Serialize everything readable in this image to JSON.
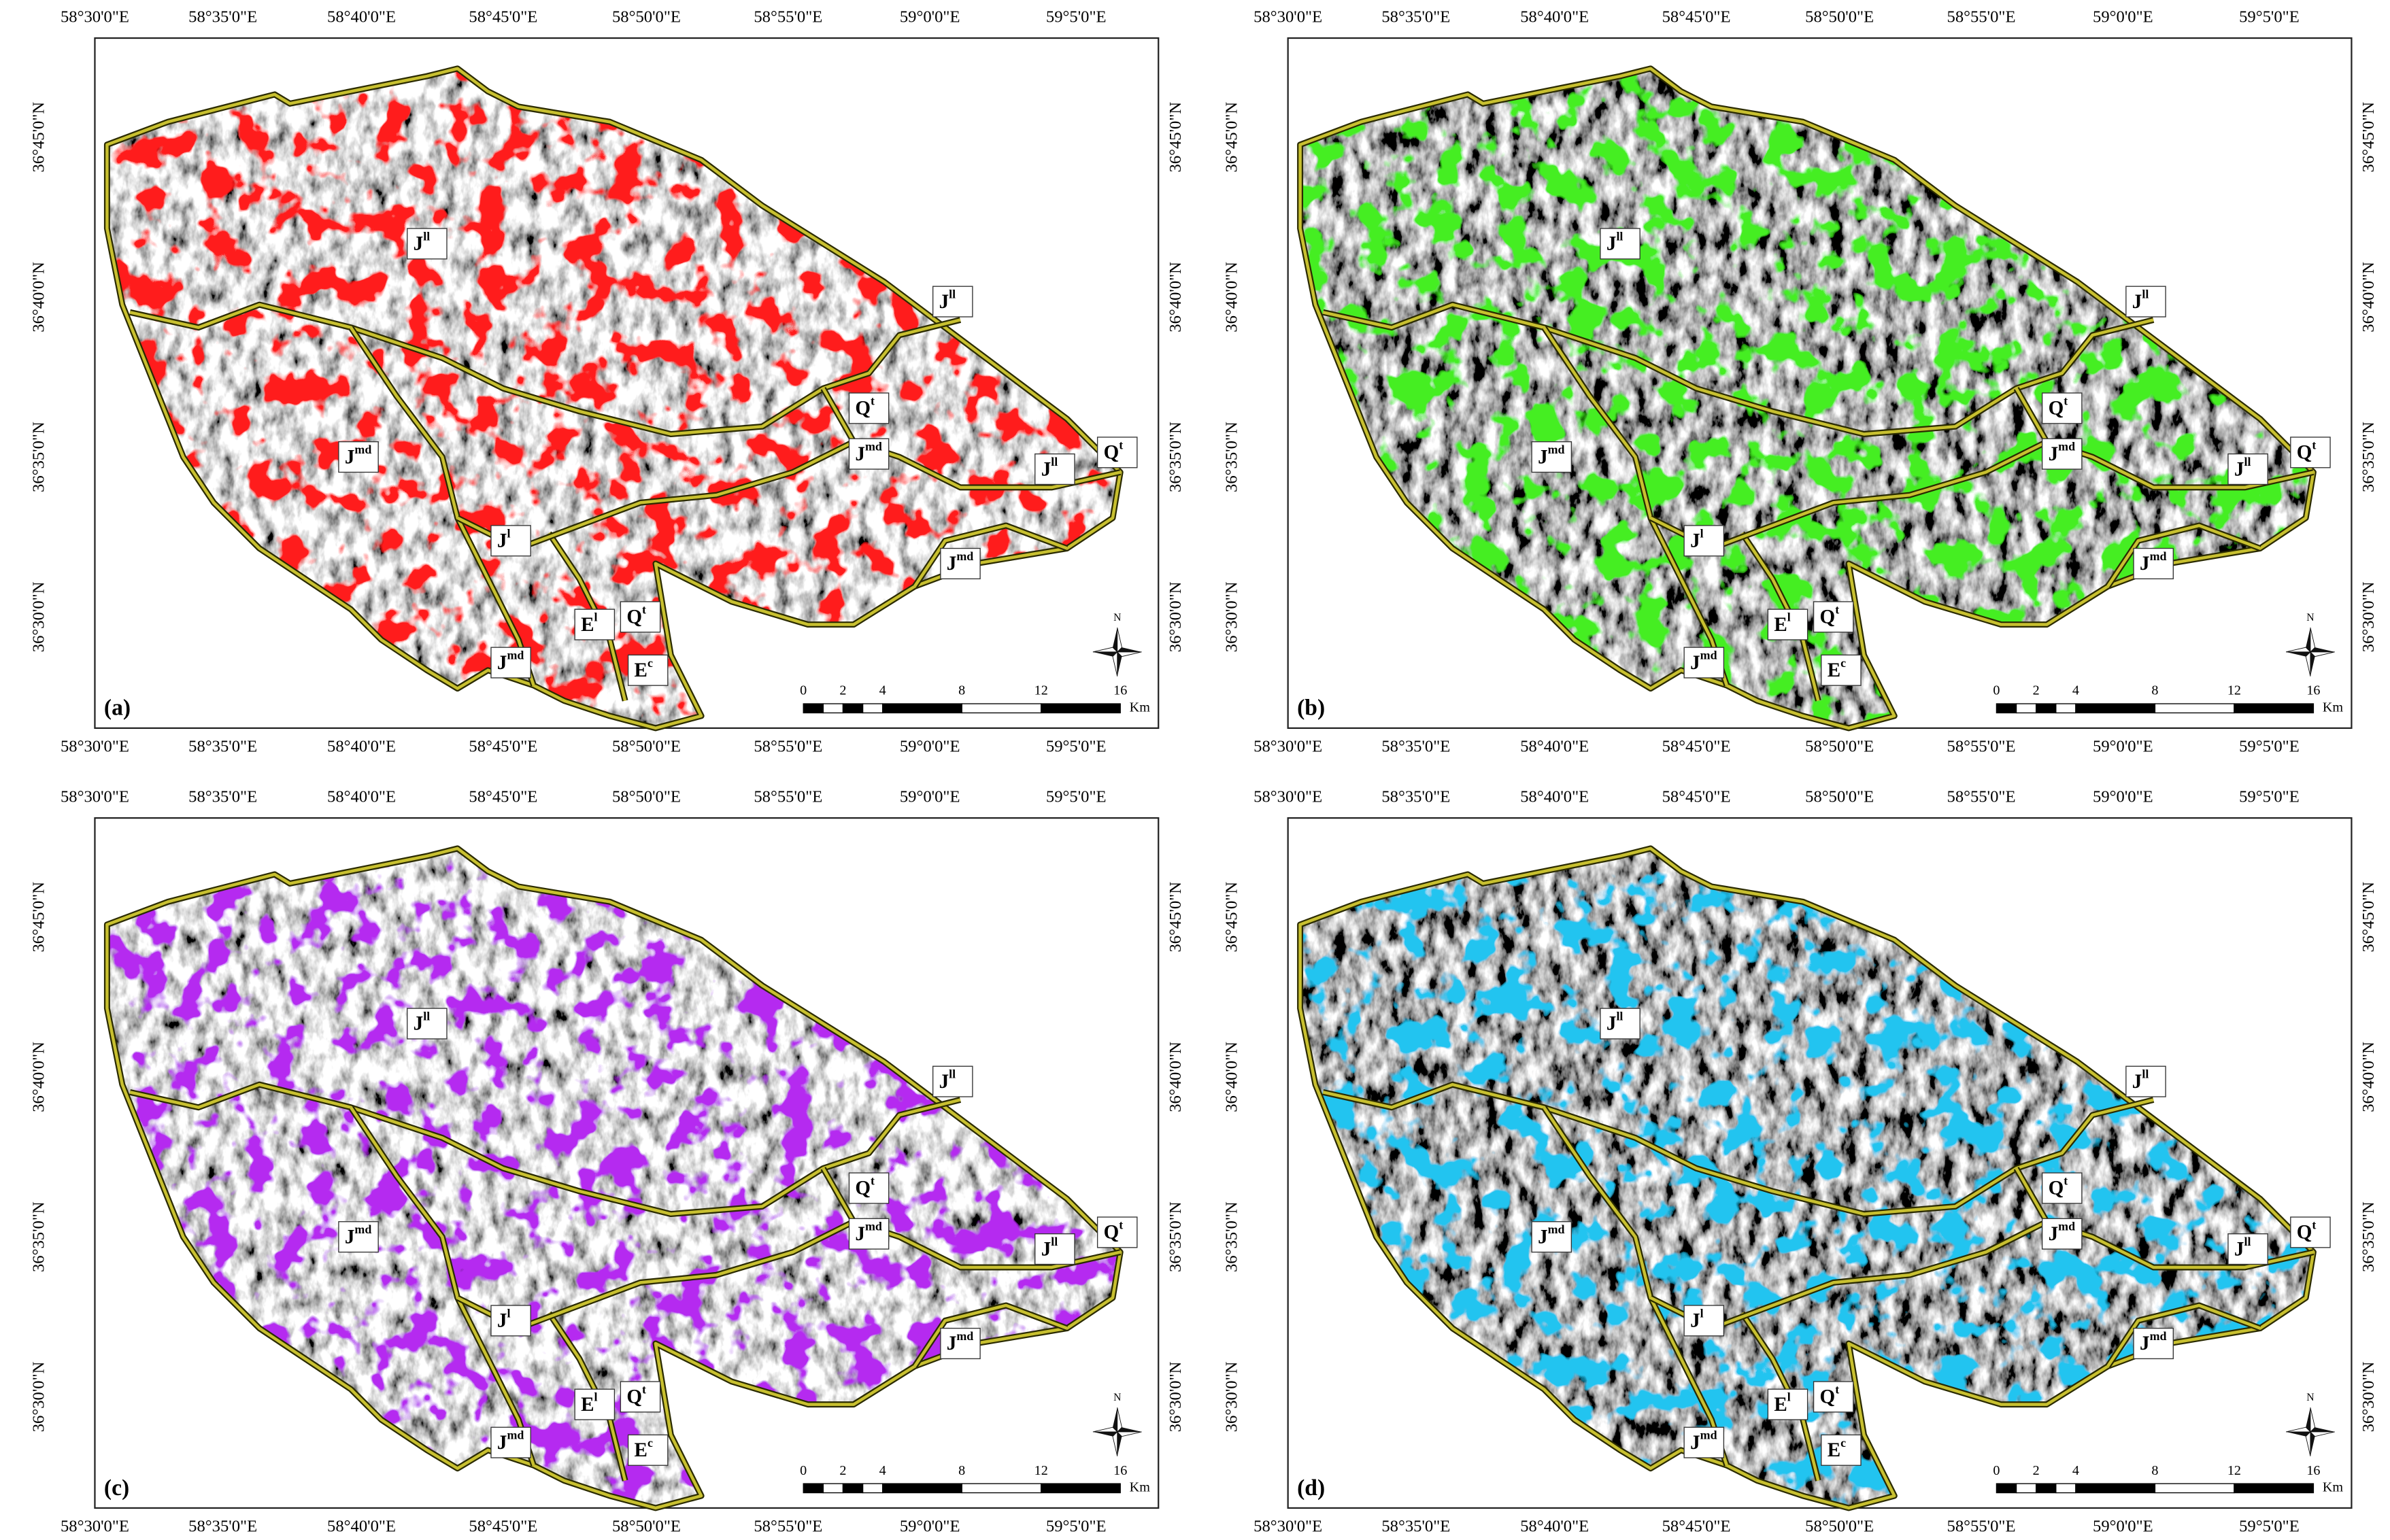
{
  "lon_labels": [
    "58°30'0\"E",
    "58°35'0\"E",
    "58°40'0\"E",
    "58°45'0\"E",
    "58°50'0\"E",
    "58°55'0\"E",
    "59°0'0\"E",
    "59°5'0\"E"
  ],
  "lat_labels": [
    "36°45'0\"N",
    "36°40'0\"N",
    "36°35'0\"N",
    "36°30'0\"N"
  ],
  "scale_bar": {
    "ticks": [
      0,
      2,
      4,
      8,
      12,
      16
    ],
    "unit": "Km"
  },
  "north": "N",
  "units": [
    {
      "base": "J",
      "sup": "ll"
    },
    {
      "base": "J",
      "sup": "md"
    },
    {
      "base": "J",
      "sup": "l"
    },
    {
      "base": "E",
      "sup": "l"
    },
    {
      "base": "Q",
      "sup": "t"
    },
    {
      "base": "J",
      "sup": "md"
    },
    {
      "base": "E",
      "sup": "c"
    },
    {
      "base": "Q",
      "sup": "t"
    },
    {
      "base": "J",
      "sup": "md"
    },
    {
      "base": "J",
      "sup": "ll"
    },
    {
      "base": "J",
      "sup": "ll"
    },
    {
      "base": "Q",
      "sup": "t"
    },
    {
      "base": "J",
      "sup": "md"
    }
  ],
  "panels": [
    {
      "label": "(a)",
      "color": "#ff1a1a"
    },
    {
      "label": "(b)",
      "color": "#44ee22"
    },
    {
      "label": "(c)",
      "color": "#b52cf0"
    },
    {
      "label": "(d)",
      "color": "#22c4f0"
    }
  ]
}
